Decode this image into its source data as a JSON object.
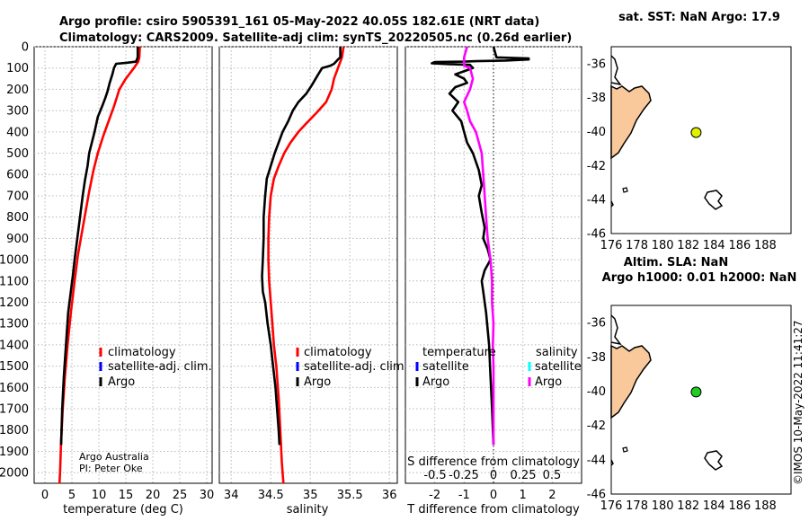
{
  "header": {
    "line1": "Argo profile: csiro 5905391_161 05-May-2022 40.05S 182.61E (NRT data)",
    "line2": "Climatology: CARS2009. Satellite-adj clim: synTS_20220505.nc (0.26d earlier)"
  },
  "credit": {
    "org": "Argo Australia",
    "pi": "PI: Peter Oke"
  },
  "stamp": "©IMOS 10-May-2022 11:41:27",
  "colors": {
    "climatology": "#ff0000",
    "satellite": "#0000ff",
    "argo": "#000000",
    "sal_argo": "#ff00ff",
    "sal_sat": "#00ffff",
    "land": "#f9c89b",
    "sst_marker": "#dff200",
    "sla_marker": "#22cc22"
  },
  "legend_ts": {
    "clim": "climatology",
    "sat": "satellite-adj. clim.",
    "argo": "Argo"
  },
  "legend_diff": {
    "temp_title": "temperature",
    "sal_title": "salinity",
    "t_sat": "satellite",
    "t_argo": "Argo",
    "s_sat": "satellite",
    "s_argo": "Argo"
  },
  "map_top": {
    "title": "sat. SST: NaN Argo: 17.9"
  },
  "map_bottom": {
    "title1": "Altim. SLA: NaN",
    "title2": "Argo h1000: 0.01 h2000: NaN"
  },
  "chart_data": [
    {
      "type": "line",
      "panel": "temperature",
      "xlabel": "temperature (deg C)",
      "ylabel": "",
      "xlim": [
        -2,
        31
      ],
      "ylim": [
        2050,
        0
      ],
      "xticks": [
        0,
        5,
        10,
        15,
        20,
        25,
        30
      ],
      "yticks": [
        0,
        100,
        200,
        300,
        400,
        500,
        600,
        700,
        800,
        900,
        1000,
        1100,
        1200,
        1300,
        1400,
        1500,
        1600,
        1700,
        1800,
        1900,
        2000
      ],
      "series": [
        {
          "name": "climatology",
          "color": "#ff0000",
          "points": [
            [
              17.6,
              0
            ],
            [
              17.5,
              50
            ],
            [
              17.3,
              70
            ],
            [
              16.5,
              100
            ],
            [
              15,
              150
            ],
            [
              13.8,
              200
            ],
            [
              12.8,
              280
            ],
            [
              11.8,
              350
            ],
            [
              10.8,
              420
            ],
            [
              9.8,
              500
            ],
            [
              9.0,
              580
            ],
            [
              8.2,
              680
            ],
            [
              7.5,
              780
            ],
            [
              6.8,
              880
            ],
            [
              6.1,
              980
            ],
            [
              5.5,
              1100
            ],
            [
              4.8,
              1250
            ],
            [
              4.2,
              1400
            ],
            [
              3.7,
              1550
            ],
            [
              3.3,
              1700
            ],
            [
              3.0,
              1850
            ],
            [
              2.8,
              2000
            ],
            [
              2.7,
              2050
            ]
          ]
        },
        {
          "name": "Argo",
          "color": "#000000",
          "points": [
            [
              17.2,
              0
            ],
            [
              17.2,
              50
            ],
            [
              16.9,
              70
            ],
            [
              15.3,
              75
            ],
            [
              13.2,
              80
            ],
            [
              12.8,
              100
            ],
            [
              12.5,
              130
            ],
            [
              12.0,
              170
            ],
            [
              11.6,
              210
            ],
            [
              11.2,
              240
            ],
            [
              10.6,
              280
            ],
            [
              9.8,
              330
            ],
            [
              9.2,
              400
            ],
            [
              8.7,
              450
            ],
            [
              8.2,
              500
            ],
            [
              7.9,
              560
            ],
            [
              7.4,
              630
            ],
            [
              7.0,
              700
            ],
            [
              6.6,
              780
            ],
            [
              6.2,
              860
            ],
            [
              5.8,
              940
            ],
            [
              5.5,
              1000
            ],
            [
              5.2,
              1070
            ],
            [
              4.8,
              1150
            ],
            [
              4.3,
              1250
            ],
            [
              3.9,
              1400
            ],
            [
              3.5,
              1550
            ],
            [
              3.2,
              1700
            ],
            [
              3.0,
              1870
            ]
          ]
        }
      ]
    },
    {
      "type": "line",
      "panel": "salinity",
      "xlabel": "salinity",
      "ylabel": "",
      "xlim": [
        33.85,
        36.1
      ],
      "ylim": [
        2050,
        0
      ],
      "xticks": [
        34,
        34.5,
        35,
        35.5,
        36
      ],
      "series": [
        {
          "name": "climatology",
          "color": "#ff0000",
          "points": [
            [
              35.42,
              0
            ],
            [
              35.4,
              50
            ],
            [
              35.35,
              100
            ],
            [
              35.3,
              150
            ],
            [
              35.27,
              200
            ],
            [
              35.2,
              260
            ],
            [
              35.08,
              310
            ],
            [
              34.95,
              360
            ],
            [
              34.85,
              400
            ],
            [
              34.75,
              450
            ],
            [
              34.67,
              500
            ],
            [
              34.6,
              560
            ],
            [
              34.54,
              620
            ],
            [
              34.5,
              700
            ],
            [
              34.48,
              800
            ],
            [
              34.47,
              900
            ],
            [
              34.47,
              1000
            ],
            [
              34.48,
              1100
            ],
            [
              34.5,
              1200
            ],
            [
              34.52,
              1300
            ],
            [
              34.54,
              1400
            ],
            [
              34.57,
              1500
            ],
            [
              34.6,
              1650
            ],
            [
              34.62,
              1800
            ],
            [
              34.64,
              1950
            ],
            [
              34.66,
              2050
            ]
          ]
        },
        {
          "name": "Argo",
          "color": "#000000",
          "points": [
            [
              35.38,
              0
            ],
            [
              35.38,
              50
            ],
            [
              35.35,
              60
            ],
            [
              35.3,
              80
            ],
            [
              35.25,
              90
            ],
            [
              35.15,
              100
            ],
            [
              35.1,
              130
            ],
            [
              35.02,
              180
            ],
            [
              34.95,
              220
            ],
            [
              34.85,
              260
            ],
            [
              34.78,
              300
            ],
            [
              34.72,
              350
            ],
            [
              34.65,
              400
            ],
            [
              34.6,
              450
            ],
            [
              34.55,
              500
            ],
            [
              34.5,
              560
            ],
            [
              34.45,
              620
            ],
            [
              34.43,
              700
            ],
            [
              34.41,
              800
            ],
            [
              34.41,
              900
            ],
            [
              34.4,
              1000
            ],
            [
              34.39,
              1080
            ],
            [
              34.4,
              1150
            ],
            [
              34.43,
              1200
            ],
            [
              34.46,
              1300
            ],
            [
              34.5,
              1400
            ],
            [
              34.53,
              1500
            ],
            [
              34.56,
              1600
            ],
            [
              34.58,
              1700
            ],
            [
              34.6,
              1800
            ],
            [
              34.61,
              1870
            ]
          ]
        }
      ]
    },
    {
      "type": "line",
      "panel": "difference",
      "xlabel": "T difference from climatology",
      "x2label": "S difference from climatology",
      "xlim": [
        -3,
        3
      ],
      "ylim": [
        2050,
        0
      ],
      "xticks": [
        -2,
        -1,
        0,
        1,
        2
      ],
      "x2ticks": [
        "-0.5",
        "-0.25",
        "0",
        "0.25",
        "0.5"
      ],
      "series": [
        {
          "name": "temperature Argo",
          "color": "#000000",
          "points": [
            [
              0,
              0
            ],
            [
              0.1,
              50
            ],
            [
              1.2,
              55
            ],
            [
              1.2,
              60
            ],
            [
              0.4,
              65
            ],
            [
              -0.6,
              68
            ],
            [
              -1.0,
              70
            ],
            [
              -2.0,
              72
            ],
            [
              -2.1,
              78
            ],
            [
              -1.5,
              82
            ],
            [
              -0.8,
              85
            ],
            [
              -0.7,
              100
            ],
            [
              -0.9,
              110
            ],
            [
              -1.3,
              130
            ],
            [
              -1.0,
              150
            ],
            [
              -0.9,
              170
            ],
            [
              -1.3,
              190
            ],
            [
              -1.5,
              220
            ],
            [
              -1.2,
              260
            ],
            [
              -1.4,
              300
            ],
            [
              -1.1,
              350
            ],
            [
              -1.0,
              400
            ],
            [
              -0.9,
              450
            ],
            [
              -0.7,
              500
            ],
            [
              -0.5,
              580
            ],
            [
              -0.4,
              650
            ],
            [
              -0.5,
              700
            ],
            [
              -0.4,
              780
            ],
            [
              -0.3,
              850
            ],
            [
              -0.35,
              900
            ],
            [
              -0.2,
              950
            ],
            [
              -0.1,
              1000
            ],
            [
              -0.3,
              1050
            ],
            [
              -0.4,
              1100
            ],
            [
              -0.35,
              1150
            ],
            [
              -0.25,
              1250
            ],
            [
              -0.15,
              1400
            ],
            [
              -0.1,
              1550
            ],
            [
              -0.05,
              1700
            ],
            [
              0.0,
              1870
            ]
          ]
        },
        {
          "name": "salinity Argo",
          "color": "#ff00ff",
          "points": [
            [
              -0.9,
              0
            ],
            [
              -1.0,
              50
            ],
            [
              -1.0,
              60
            ],
            [
              -1.0,
              90
            ],
            [
              -0.8,
              100
            ],
            [
              -0.7,
              150
            ],
            [
              -0.8,
              200
            ],
            [
              -0.9,
              230
            ],
            [
              -1.0,
              260
            ],
            [
              -0.9,
              300
            ],
            [
              -0.8,
              350
            ],
            [
              -0.6,
              400
            ],
            [
              -0.5,
              450
            ],
            [
              -0.4,
              500
            ],
            [
              -0.35,
              600
            ],
            [
              -0.3,
              700
            ],
            [
              -0.25,
              800
            ],
            [
              -0.2,
              900
            ],
            [
              -0.1,
              1000
            ],
            [
              -0.05,
              1100
            ],
            [
              -0.05,
              1200
            ],
            [
              0.0,
              1300
            ],
            [
              -0.02,
              1400
            ],
            [
              0.0,
              1500
            ],
            [
              0.0,
              1600
            ],
            [
              0.0,
              1700
            ],
            [
              0.0,
              1870
            ]
          ]
        }
      ]
    },
    {
      "type": "scatter",
      "panel": "map_sst",
      "title": "sat. SST: NaN Argo: 17.9",
      "xlim": [
        176,
        190
      ],
      "ylim": [
        -46,
        -35
      ],
      "xticks": [
        176,
        178,
        180,
        182,
        184,
        186,
        188
      ],
      "yticks": [
        -36,
        -38,
        -40,
        -42,
        -44,
        -46
      ],
      "points": [
        {
          "lon": 182.61,
          "lat": -40.05,
          "color": "#dff200"
        }
      ]
    },
    {
      "type": "scatter",
      "panel": "map_sla",
      "title": "Altim. SLA: NaN / Argo h1000: 0.01 h2000: NaN",
      "xlim": [
        176,
        190
      ],
      "ylim": [
        -46,
        -35
      ],
      "xticks": [
        176,
        178,
        180,
        182,
        184,
        186,
        188
      ],
      "yticks": [
        -36,
        -38,
        -40,
        -42,
        -44,
        -46
      ],
      "points": [
        {
          "lon": 182.61,
          "lat": -40.05,
          "color": "#22cc22"
        }
      ]
    }
  ]
}
